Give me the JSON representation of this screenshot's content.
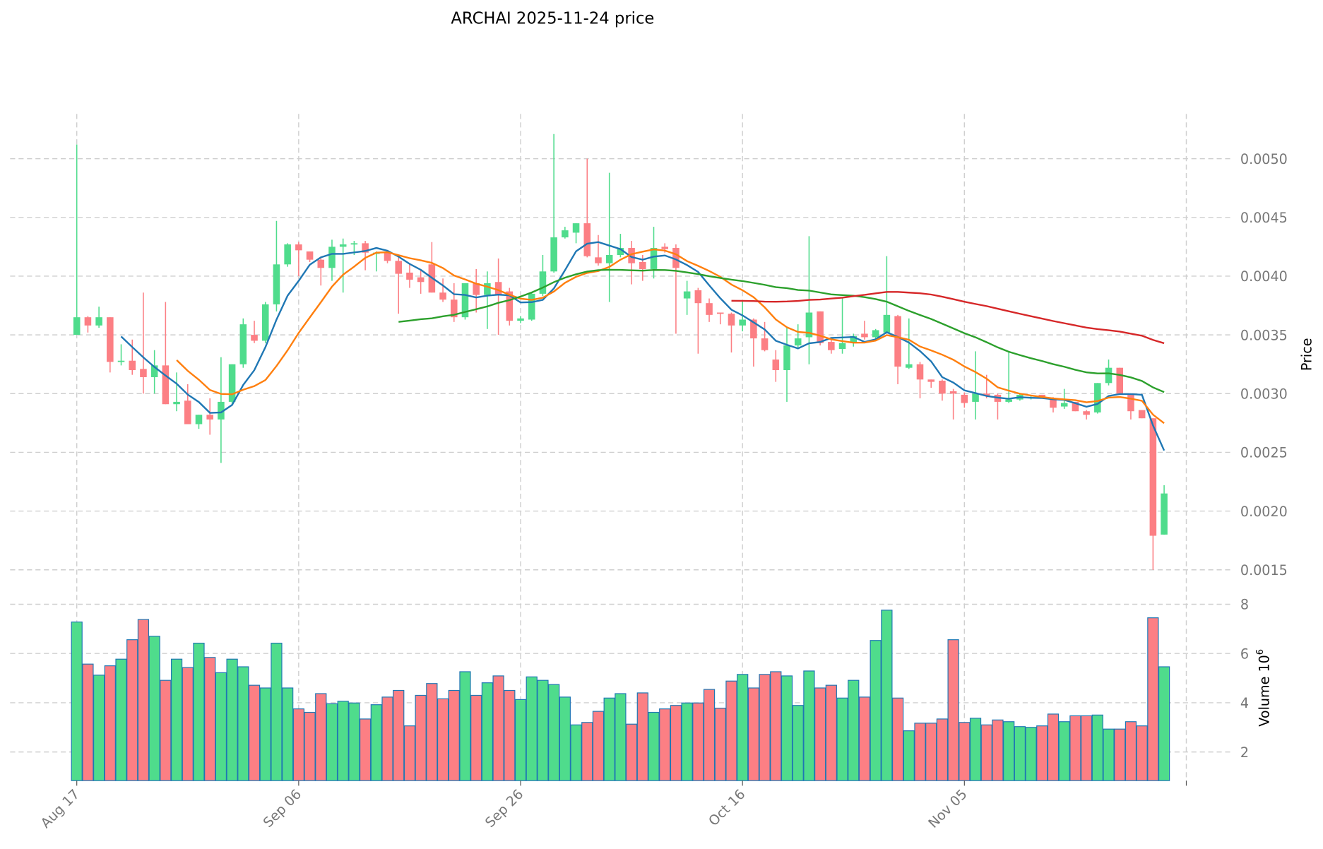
{
  "chart_data": {
    "type": "candlestick",
    "title": "ARCHAI  2025-11-24  price",
    "ylabel": "Price",
    "volume_label": "Volume  10",
    "volume_exponent": "6",
    "ylim": [
      0.00148,
      0.00535
    ],
    "volume_ylim": [
      0.9,
      8.2
    ],
    "grid": true,
    "yticks": [
      "0.0015",
      "0.0020",
      "0.0025",
      "0.0030",
      "0.0035",
      "0.0040",
      "0.0045",
      "0.0050"
    ],
    "volume_yticks": [
      "2",
      "4",
      "6",
      "8"
    ],
    "xticks": [
      {
        "label": "Aug 17",
        "day": 0
      },
      {
        "label": "Sep 06",
        "day": 20
      },
      {
        "label": "Sep 26",
        "day": 40
      },
      {
        "label": "Oct 16",
        "day": 60
      },
      {
        "label": "Nov 05",
        "day": 80
      },
      {
        "label": "",
        "day": 100
      }
    ],
    "moving_averages": [
      {
        "period": 5,
        "color": "#1f77b4"
      },
      {
        "period": 10,
        "color": "#ff7f0e"
      },
      {
        "period": 30,
        "color": "#2ca02c"
      },
      {
        "period": 60,
        "color": "#d62728"
      }
    ],
    "colors": {
      "up": "#4fdc8c",
      "down": "#fc7f84",
      "volume_edge": "#1f77b4"
    },
    "open": [
      0.0035,
      0.00365,
      0.00358,
      0.00365,
      0.00327,
      0.00328,
      0.00321,
      0.00314,
      0.00324,
      0.00291,
      0.00294,
      0.00274,
      0.00282,
      0.00278,
      0.00293,
      0.00325,
      0.0035,
      0.00345,
      0.00376,
      0.0041,
      0.00427,
      0.00421,
      0.00414,
      0.00407,
      0.00425,
      0.00427,
      0.00428,
      0.00419,
      0.00421,
      0.00413,
      0.00403,
      0.00399,
      0.0041,
      0.00386,
      0.0038,
      0.00365,
      0.00394,
      0.00384,
      0.00395,
      0.00387,
      0.00362,
      0.00363,
      0.00385,
      0.00404,
      0.00433,
      0.00437,
      0.00445,
      0.00416,
      0.00411,
      0.00418,
      0.00424,
      0.00412,
      0.00406,
      0.00425,
      0.00424,
      0.00381,
      0.00388,
      0.00377,
      0.00369,
      0.00368,
      0.00358,
      0.00363,
      0.00347,
      0.00329,
      0.0032,
      0.00341,
      0.00348,
      0.0037,
      0.00344,
      0.00338,
      0.00343,
      0.00351,
      0.00348,
      0.00352,
      0.00366,
      0.00322,
      0.00325,
      0.00312,
      0.00311,
      0.00302,
      0.00299,
      0.00293,
      0.003,
      0.00299,
      0.00293,
      0.00295,
      0.00296,
      0.00299,
      0.00296,
      0.00289,
      0.00293,
      0.00285,
      0.00284,
      0.00309,
      0.00322,
      0.003,
      0.00286,
      0.00279,
      0.0018
    ],
    "high": [
      0.00512,
      0.00366,
      0.00374,
      0.00365,
      0.00342,
      0.00346,
      0.00386,
      0.00337,
      0.00378,
      0.00318,
      0.00308,
      0.00282,
      0.00296,
      0.00331,
      0.00325,
      0.00364,
      0.00362,
      0.00378,
      0.00447,
      0.00428,
      0.00429,
      0.00421,
      0.00416,
      0.00431,
      0.00432,
      0.0043,
      0.0043,
      0.00421,
      0.00421,
      0.00418,
      0.0041,
      0.00405,
      0.00429,
      0.00398,
      0.00394,
      0.00394,
      0.00406,
      0.00404,
      0.00415,
      0.0039,
      0.00366,
      0.00386,
      0.00418,
      0.00521,
      0.00442,
      0.00445,
      0.005,
      0.00435,
      0.00488,
      0.00436,
      0.0043,
      0.00418,
      0.00442,
      0.00428,
      0.00427,
      0.00396,
      0.0039,
      0.00381,
      0.00369,
      0.00369,
      0.00379,
      0.00364,
      0.00361,
      0.00337,
      0.00356,
      0.00359,
      0.00434,
      0.0037,
      0.00346,
      0.00382,
      0.00351,
      0.00362,
      0.00355,
      0.00417,
      0.00367,
      0.00364,
      0.00327,
      0.00312,
      0.00312,
      0.00304,
      0.00301,
      0.00336,
      0.00316,
      0.003,
      0.00336,
      0.003,
      0.00298,
      0.00299,
      0.00297,
      0.00304,
      0.00293,
      0.00286,
      0.00309,
      0.00329,
      0.00322,
      0.003,
      0.00286,
      0.00279,
      0.00222
    ],
    "low": [
      0.0035,
      0.00352,
      0.00356,
      0.00318,
      0.00324,
      0.00316,
      0.003,
      0.003,
      0.00291,
      0.00285,
      0.00274,
      0.0027,
      0.00265,
      0.00241,
      0.0029,
      0.00322,
      0.00343,
      0.00343,
      0.0037,
      0.00408,
      0.004,
      0.00412,
      0.00392,
      0.00396,
      0.00386,
      0.00418,
      0.00405,
      0.00404,
      0.00411,
      0.00368,
      0.0039,
      0.00385,
      0.00386,
      0.00378,
      0.00361,
      0.00363,
      0.00369,
      0.00355,
      0.0035,
      0.00358,
      0.0036,
      0.00362,
      0.00383,
      0.00403,
      0.00432,
      0.00428,
      0.00416,
      0.00409,
      0.00378,
      0.00416,
      0.00393,
      0.00396,
      0.00398,
      0.0042,
      0.00351,
      0.00367,
      0.00334,
      0.00361,
      0.00359,
      0.00335,
      0.00353,
      0.00323,
      0.00336,
      0.0031,
      0.00293,
      0.00338,
      0.00325,
      0.00341,
      0.00334,
      0.00334,
      0.0034,
      0.00346,
      0.00346,
      0.00351,
      0.00308,
      0.00321,
      0.00296,
      0.00305,
      0.00294,
      0.00278,
      0.00288,
      0.00278,
      0.00296,
      0.00278,
      0.00292,
      0.00294,
      0.00295,
      0.00296,
      0.00284,
      0.00287,
      0.00285,
      0.00278,
      0.00283,
      0.00307,
      0.003,
      0.00278,
      0.00279,
      0.0015,
      0.0018
    ],
    "close": [
      0.00365,
      0.00358,
      0.00365,
      0.00327,
      0.00328,
      0.0032,
      0.00314,
      0.00324,
      0.00291,
      0.00293,
      0.00274,
      0.00282,
      0.00278,
      0.00293,
      0.00325,
      0.00359,
      0.00345,
      0.00376,
      0.0041,
      0.00427,
      0.00422,
      0.00414,
      0.00407,
      0.00425,
      0.00427,
      0.00428,
      0.0042,
      0.0042,
      0.00413,
      0.00402,
      0.00397,
      0.00395,
      0.00386,
      0.0038,
      0.00365,
      0.00394,
      0.00384,
      0.00394,
      0.00384,
      0.00362,
      0.00364,
      0.00385,
      0.00404,
      0.00433,
      0.00439,
      0.00445,
      0.00417,
      0.00411,
      0.00418,
      0.00424,
      0.00411,
      0.00406,
      0.00424,
      0.00423,
      0.00407,
      0.00387,
      0.00377,
      0.00367,
      0.00368,
      0.00358,
      0.00363,
      0.00347,
      0.00337,
      0.0032,
      0.00341,
      0.00347,
      0.00369,
      0.00343,
      0.00337,
      0.00343,
      0.00349,
      0.00348,
      0.00354,
      0.00367,
      0.00323,
      0.00325,
      0.00312,
      0.0031,
      0.003,
      0.003,
      0.00292,
      0.003,
      0.00298,
      0.00293,
      0.00295,
      0.00299,
      0.00297,
      0.00297,
      0.00288,
      0.00292,
      0.00285,
      0.00282,
      0.00309,
      0.00322,
      0.003,
      0.00285,
      0.00279,
      0.00179,
      0.00215
    ],
    "volume": [
      7.28,
      5.57,
      5.12,
      5.5,
      5.77,
      6.56,
      7.38,
      6.7,
      4.91,
      5.77,
      5.43,
      6.42,
      5.84,
      5.22,
      5.77,
      5.46,
      4.71,
      4.6,
      6.42,
      4.6,
      3.75,
      3.61,
      4.37,
      3.96,
      4.06,
      3.99,
      3.34,
      3.92,
      4.23,
      4.5,
      3.06,
      4.3,
      4.78,
      4.16,
      4.5,
      5.26,
      4.3,
      4.81,
      5.09,
      4.5,
      4.13,
      5.05,
      4.91,
      4.74,
      4.23,
      3.1,
      3.2,
      3.65,
      4.19,
      4.37,
      3.13,
      4.4,
      3.61,
      3.75,
      3.89,
      3.99,
      3.99,
      4.54,
      3.78,
      4.88,
      5.15,
      4.6,
      5.15,
      5.26,
      5.09,
      3.89,
      5.29,
      4.6,
      4.71,
      4.19,
      4.91,
      4.23,
      6.53,
      7.76,
      4.19,
      2.86,
      3.17,
      3.17,
      3.34,
      6.56,
      3.2,
      3.37,
      3.1,
      3.3,
      3.23,
      3.03,
      3.0,
      3.06,
      3.54,
      3.23,
      3.47,
      3.47,
      3.5,
      2.93,
      2.93,
      3.23,
      3.06,
      7.45,
      5.46
    ]
  }
}
